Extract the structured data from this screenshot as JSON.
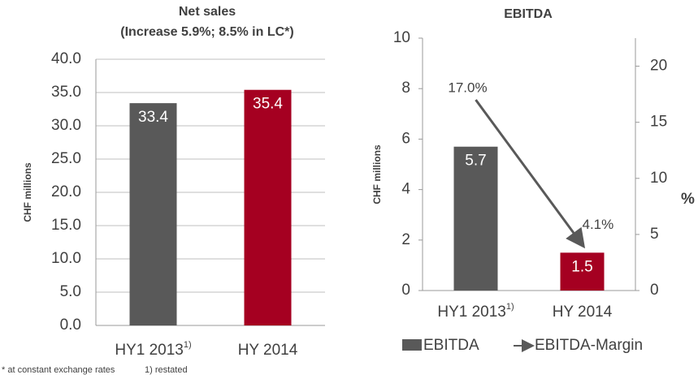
{
  "chart_data": [
    {
      "type": "bar",
      "title": "Net sales",
      "subtitle": "(Increase 5.9%; 8.5% in LC*)",
      "y_label": "CHF millions",
      "categories": [
        "HY1 2013",
        "HY 2014"
      ],
      "category_notes": {
        "0": "1)"
      },
      "values": [
        33.4,
        35.4
      ],
      "colors": [
        "#595959",
        "#a50021"
      ],
      "ylim": [
        0,
        40
      ],
      "yticks": [
        {
          "value": 0,
          "label": "0.0"
        },
        {
          "value": 5,
          "label": "5.0"
        },
        {
          "value": 10,
          "label": "10.0"
        },
        {
          "value": 15,
          "label": "15.0"
        },
        {
          "value": 20,
          "label": "20.0"
        },
        {
          "value": 25,
          "label": "25.0"
        },
        {
          "value": 30,
          "label": "30.0"
        },
        {
          "value": 35,
          "label": "35.0"
        },
        {
          "value": 40,
          "label": "40.0"
        }
      ],
      "grid": true
    },
    {
      "type": "combo",
      "title": "EBITDA",
      "y_label": "CHF millions",
      "y2_label": "%",
      "categories": [
        "HY1 2013",
        "HY 2014"
      ],
      "category_notes": {
        "0": "1)"
      },
      "series": [
        {
          "name": "EBITDA",
          "type": "bar",
          "color": "#595959",
          "colors": [
            "#595959",
            "#a50021"
          ],
          "values": [
            5.7,
            1.5
          ]
        },
        {
          "name": "EBITDA-Margin",
          "type": "line",
          "axis": "y2",
          "color": "#595959",
          "values": [
            17.0,
            4.1
          ],
          "value_labels": [
            "17.0%",
            "4.1%"
          ]
        }
      ],
      "ylim": [
        0,
        10
      ],
      "yticks": [
        0,
        2,
        4,
        6,
        8,
        10
      ],
      "y2lim": [
        0,
        22.5
      ],
      "y2ticks": [
        0,
        5,
        10,
        15,
        20
      ],
      "grid": false,
      "legend": "bottom"
    }
  ],
  "footnotes": [
    "* at constant exchange rates",
    "1) restated"
  ]
}
